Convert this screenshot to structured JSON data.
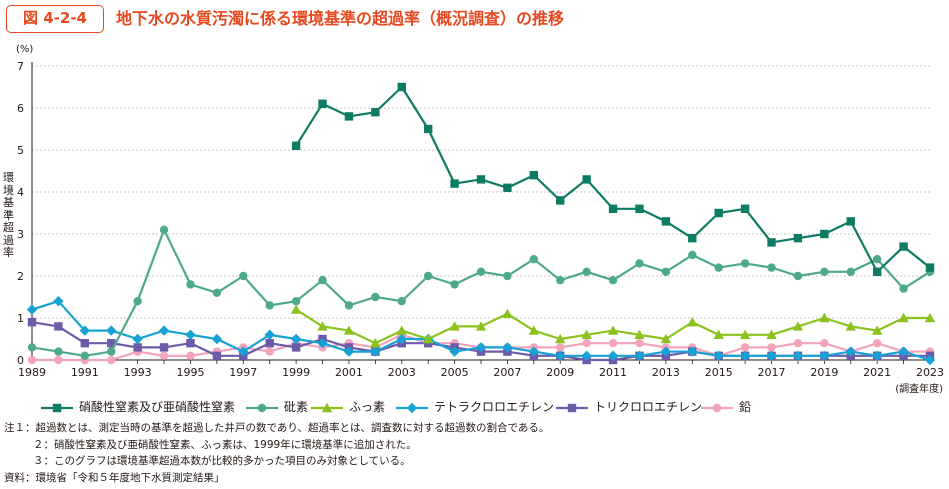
{
  "figure": {
    "label": "図 4-2-4",
    "title": "地下水の水質汚濁に係る環境基準の超過率（概況調査）の推移"
  },
  "chart_data": {
    "type": "line",
    "title": "地下水の水質汚濁に係る環境基準の超過率（概況調査）の推移",
    "ylabel": "環境基準超過率",
    "yunit": "(%)",
    "xunit": "(調査年度)",
    "ylim": [
      0,
      7
    ],
    "yticks": [
      "0",
      "1",
      "2",
      "3",
      "4",
      "5",
      "6",
      "7"
    ],
    "xlim": [
      1989,
      2023
    ],
    "xticks": [
      "1989",
      "1991",
      "1993",
      "1995",
      "1997",
      "1999",
      "2001",
      "2003",
      "2005",
      "2007",
      "2009",
      "2011",
      "2013",
      "2015",
      "2017",
      "2019",
      "2021",
      "2023"
    ],
    "grid": "horizontal dashed",
    "legend_position": "bottom",
    "series": [
      {
        "name": "硝酸性窒素及び亜硝酸性窒素",
        "color": "#0e7b65",
        "marker": "square",
        "x": [
          1999,
          2000,
          2001,
          2002,
          2003,
          2004,
          2005,
          2006,
          2007,
          2008,
          2009,
          2010,
          2011,
          2012,
          2013,
          2014,
          2015,
          2016,
          2017,
          2018,
          2019,
          2020,
          2021,
          2022,
          2023
        ],
        "y": [
          5.1,
          6.1,
          5.8,
          5.9,
          6.5,
          5.5,
          4.2,
          4.3,
          4.1,
          4.4,
          3.8,
          4.3,
          3.6,
          3.6,
          3.3,
          2.9,
          3.5,
          3.6,
          2.8,
          2.9,
          3.0,
          3.3,
          2.1,
          2.7,
          2.2
        ]
      },
      {
        "name": "砒素",
        "color": "#4ea98a",
        "marker": "circle",
        "x": [
          1989,
          1990,
          1991,
          1992,
          1993,
          1994,
          1995,
          1996,
          1997,
          1998,
          1999,
          2000,
          2001,
          2002,
          2003,
          2004,
          2005,
          2006,
          2007,
          2008,
          2009,
          2010,
          2011,
          2012,
          2013,
          2014,
          2015,
          2016,
          2017,
          2018,
          2019,
          2020,
          2021,
          2022,
          2023
        ],
        "y": [
          0.3,
          0.2,
          0.1,
          0.2,
          1.4,
          3.1,
          1.8,
          1.6,
          2.0,
          1.3,
          1.4,
          1.9,
          1.3,
          1.5,
          1.4,
          2.0,
          1.8,
          2.1,
          2.0,
          2.4,
          1.9,
          2.1,
          1.9,
          2.3,
          2.1,
          2.5,
          2.2,
          2.3,
          2.2,
          2.0,
          2.1,
          2.1,
          2.4,
          1.7,
          2.1
        ]
      },
      {
        "name": "ふっ素",
        "color": "#8cc21e",
        "marker": "triangle",
        "x": [
          1999,
          2000,
          2001,
          2002,
          2003,
          2004,
          2005,
          2006,
          2007,
          2008,
          2009,
          2010,
          2011,
          2012,
          2013,
          2014,
          2015,
          2016,
          2017,
          2018,
          2019,
          2020,
          2021,
          2022,
          2023
        ],
        "y": [
          1.2,
          0.8,
          0.7,
          0.4,
          0.7,
          0.5,
          0.8,
          0.8,
          1.1,
          0.7,
          0.5,
          0.6,
          0.7,
          0.6,
          0.5,
          0.9,
          0.6,
          0.6,
          0.6,
          0.8,
          1.0,
          0.8,
          0.7,
          1.0,
          1.0
        ]
      },
      {
        "name": "テトラクロロエチレン",
        "color": "#17a2d4",
        "marker": "diamond",
        "x": [
          1989,
          1990,
          1991,
          1992,
          1993,
          1994,
          1995,
          1996,
          1997,
          1998,
          1999,
          2000,
          2001,
          2002,
          2003,
          2004,
          2005,
          2006,
          2007,
          2008,
          2009,
          2010,
          2011,
          2012,
          2013,
          2014,
          2015,
          2016,
          2017,
          2018,
          2019,
          2020,
          2021,
          2022,
          2023
        ],
        "y": [
          1.2,
          1.4,
          0.7,
          0.7,
          0.5,
          0.7,
          0.6,
          0.5,
          0.2,
          0.6,
          0.5,
          0.4,
          0.2,
          0.2,
          0.5,
          0.5,
          0.2,
          0.3,
          0.3,
          0.2,
          0.1,
          0.1,
          0.1,
          0.1,
          0.2,
          0.2,
          0.1,
          0.1,
          0.1,
          0.1,
          0.1,
          0.2,
          0.1,
          0.2,
          0.0
        ]
      },
      {
        "name": "トリクロロエチレン",
        "color": "#6d5aa8",
        "marker": "square",
        "x": [
          1989,
          1990,
          1991,
          1992,
          1993,
          1994,
          1995,
          1996,
          1997,
          1998,
          1999,
          2000,
          2001,
          2002,
          2003,
          2004,
          2005,
          2006,
          2007,
          2008,
          2009,
          2010,
          2011,
          2012,
          2013,
          2014,
          2015,
          2016,
          2017,
          2018,
          2019,
          2020,
          2021,
          2022,
          2023
        ],
        "y": [
          0.9,
          0.8,
          0.4,
          0.4,
          0.3,
          0.3,
          0.4,
          0.1,
          0.1,
          0.4,
          0.3,
          0.5,
          0.3,
          0.2,
          0.4,
          0.4,
          0.3,
          0.2,
          0.2,
          0.1,
          0.1,
          0.0,
          0.0,
          0.1,
          0.1,
          0.2,
          0.1,
          0.1,
          0.1,
          0.1,
          0.1,
          0.1,
          0.1,
          0.1,
          0.1
        ]
      },
      {
        "name": "鉛",
        "color": "#f4a3bd",
        "marker": "circle",
        "x": [
          1989,
          1990,
          1991,
          1992,
          1993,
          1994,
          1995,
          1996,
          1997,
          1998,
          1999,
          2000,
          2001,
          2002,
          2003,
          2004,
          2005,
          2006,
          2007,
          2008,
          2009,
          2010,
          2011,
          2012,
          2013,
          2014,
          2015,
          2016,
          2017,
          2018,
          2019,
          2020,
          2021,
          2022,
          2023
        ],
        "y": [
          0.0,
          0.0,
          0.0,
          0.0,
          0.2,
          0.1,
          0.1,
          0.2,
          0.3,
          0.2,
          0.4,
          0.3,
          0.4,
          0.3,
          0.6,
          0.4,
          0.4,
          0.3,
          0.3,
          0.3,
          0.3,
          0.4,
          0.4,
          0.4,
          0.3,
          0.3,
          0.1,
          0.3,
          0.3,
          0.4,
          0.4,
          0.2,
          0.4,
          0.2,
          0.2
        ]
      }
    ]
  },
  "notes": [
    {
      "label": "注１：",
      "text": "超過数とは、測定当時の基準を超過した井戸の数であり、超過率とは、調査数に対する超過数の割合である。"
    },
    {
      "label": "２：",
      "text": "硝酸性窒素及び亜硝酸性窒素、ふっ素は、1999年に環境基準に追加された。"
    },
    {
      "label": "３：",
      "text": "このグラフは環境基準超過本数が比較的多かった項目のみ対象としている。"
    },
    {
      "label": "資料：",
      "text": "環境省「令和５年度地下水質測定結果」"
    }
  ]
}
